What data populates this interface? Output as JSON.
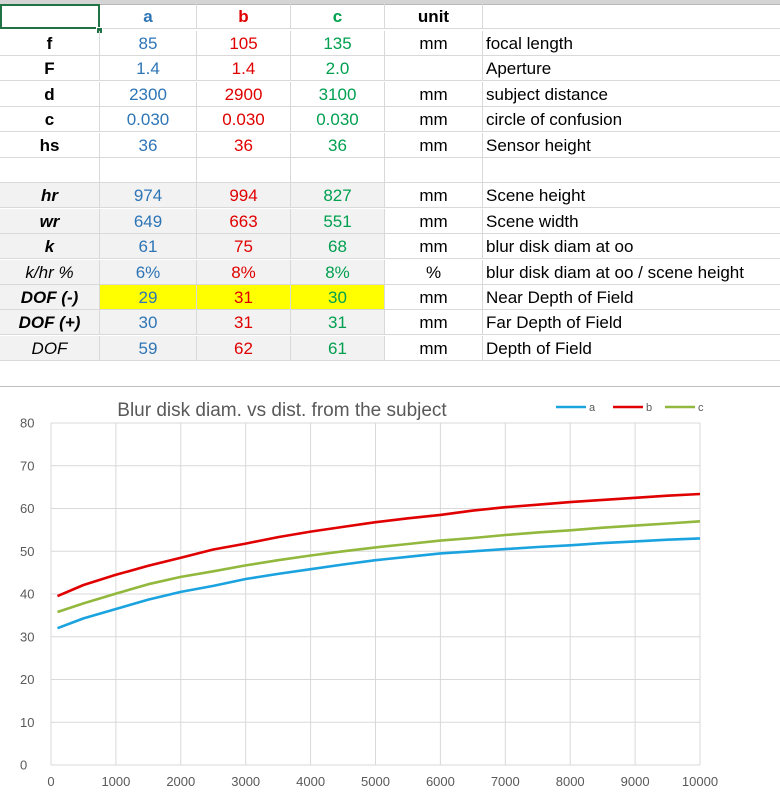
{
  "header_row": {
    "label": "",
    "a": "a",
    "b": "b",
    "c": "c",
    "unit": "unit",
    "description": ""
  },
  "rows": [
    {
      "label": "f",
      "a": "85",
      "b": "105",
      "c": "135",
      "unit": "mm",
      "description": "focal length",
      "style": "bold",
      "shaded": false,
      "highlight": false
    },
    {
      "label": "F",
      "a": "1.4",
      "b": "1.4",
      "c": "2.0",
      "unit": "",
      "description": "Aperture",
      "style": "bold",
      "shaded": false,
      "highlight": false
    },
    {
      "label": "d",
      "a": "2300",
      "b": "2900",
      "c": "3100",
      "unit": "mm",
      "description": "subject distance",
      "style": "bold",
      "shaded": false,
      "highlight": false
    },
    {
      "label": "c",
      "a": "0.030",
      "b": "0.030",
      "c": "0.030",
      "unit": "mm",
      "description": "circle of confusion",
      "style": "bold",
      "shaded": false,
      "highlight": false
    },
    {
      "label": "hs",
      "a": "36",
      "b": "36",
      "c": "36",
      "unit": "mm",
      "description": "Sensor height",
      "style": "bold",
      "shaded": false,
      "highlight": false
    },
    {
      "label": "",
      "a": "",
      "b": "",
      "c": "",
      "unit": "",
      "description": "",
      "style": "plain",
      "shaded": false,
      "highlight": false
    },
    {
      "label": "hr",
      "a": "974",
      "b": "994",
      "c": "827",
      "unit": "mm",
      "description": "Scene height",
      "style": "bolditalic",
      "shaded": true,
      "highlight": false
    },
    {
      "label": "wr",
      "a": "649",
      "b": "663",
      "c": "551",
      "unit": "mm",
      "description": "Scene width",
      "style": "bolditalic",
      "shaded": true,
      "highlight": false
    },
    {
      "label": "k",
      "a": "61",
      "b": "75",
      "c": "68",
      "unit": "mm",
      "description": "blur disk diam at oo",
      "style": "bolditalic",
      "shaded": true,
      "highlight": false
    },
    {
      "label": "k/hr %",
      "a": "6%",
      "b": "8%",
      "c": "8%",
      "unit": "%",
      "description": "blur disk diam at oo / scene height",
      "style": "italic",
      "shaded": true,
      "highlight": false
    },
    {
      "label": "DOF (-)",
      "a": "29",
      "b": "31",
      "c": "30",
      "unit": "mm",
      "description": "Near Depth of Field",
      "style": "bolditalic",
      "shaded": true,
      "highlight": true
    },
    {
      "label": "DOF (+)",
      "a": "30",
      "b": "31",
      "c": "31",
      "unit": "mm",
      "description": "Far Depth of Field",
      "style": "bolditalic",
      "shaded": true,
      "highlight": false
    },
    {
      "label": "DOF",
      "a": "59",
      "b": "62",
      "c": "61",
      "unit": "mm",
      "description": "Depth of Field",
      "style": "italic",
      "shaded": true,
      "highlight": false
    }
  ],
  "chart_data": {
    "type": "line",
    "title": "Blur disk diam. vs dist. from the subject",
    "xlabel": "",
    "ylabel": "",
    "xlim": [
      0,
      10000
    ],
    "ylim": [
      0,
      80
    ],
    "x_ticks": [
      "0",
      "1000",
      "2000",
      "3000",
      "4000",
      "5000",
      "6000",
      "7000",
      "8000",
      "9000",
      "10000"
    ],
    "y_ticks": [
      "0",
      "10",
      "20",
      "30",
      "40",
      "50",
      "60",
      "70",
      "80"
    ],
    "grid": "both",
    "legend_position": "top-right",
    "x": [
      100,
      500,
      1000,
      1500,
      2000,
      2500,
      3000,
      3500,
      4000,
      4500,
      5000,
      5500,
      6000,
      6500,
      7000,
      7500,
      8000,
      8500,
      9000,
      9500,
      10000
    ],
    "series": [
      {
        "name": "a",
        "color": "#1aa3df",
        "values": [
          32.0,
          34.3,
          36.5,
          38.7,
          40.5,
          41.9,
          43.5,
          44.7,
          45.8,
          46.9,
          47.9,
          48.7,
          49.5,
          50.0,
          50.5,
          51.0,
          51.4,
          51.9,
          52.3,
          52.7,
          53.0
        ]
      },
      {
        "name": "b",
        "color": "#e00000",
        "values": [
          39.5,
          42.1,
          44.5,
          46.6,
          48.5,
          50.4,
          51.8,
          53.3,
          54.6,
          55.7,
          56.8,
          57.7,
          58.5,
          59.5,
          60.3,
          60.9,
          61.5,
          62.0,
          62.5,
          63.0,
          63.4
        ]
      },
      {
        "name": "c",
        "color": "#92b83e",
        "values": [
          35.8,
          37.8,
          40.1,
          42.3,
          44.0,
          45.3,
          46.7,
          47.9,
          49.0,
          50.0,
          50.9,
          51.7,
          52.5,
          53.1,
          53.8,
          54.4,
          54.9,
          55.5,
          56.0,
          56.5,
          57.0
        ]
      }
    ]
  },
  "legend": {
    "a": "a",
    "b": "b",
    "c": "c"
  }
}
